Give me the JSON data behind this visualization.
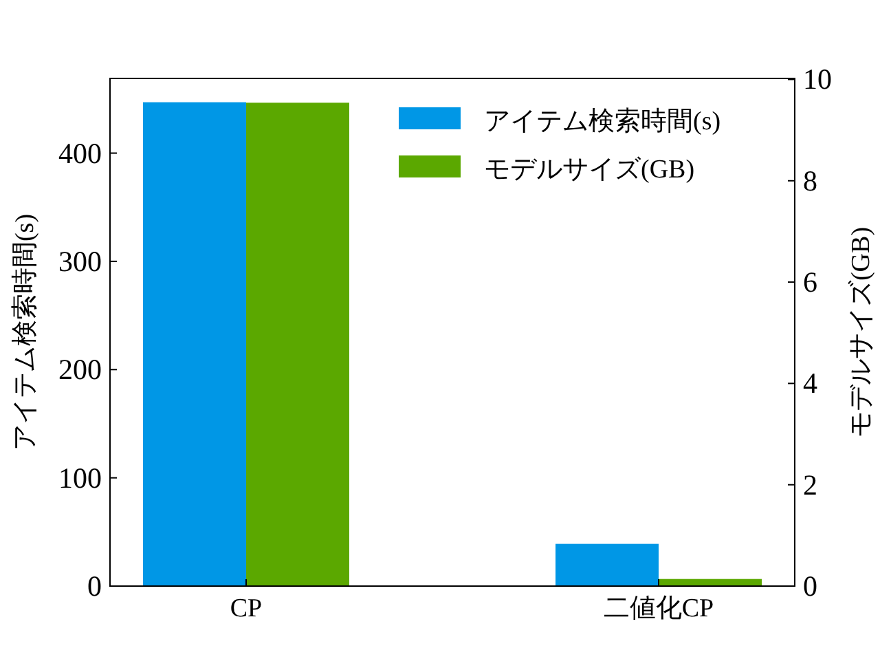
{
  "chart_data": {
    "type": "bar",
    "categories": [
      "CP",
      "二値化CP"
    ],
    "series": [
      {
        "name": "アイテム検索時間(s)",
        "color": "#0097e6",
        "values": [
          447,
          39
        ]
      },
      {
        "name": "モデルサイズ(GB)",
        "color": "#5ba800",
        "values": [
          9.54,
          0.14
        ],
        "axis": "y2"
      }
    ],
    "ylabel": "アイテム検索時間(s)",
    "y2label": "モデルサイズ(GB)",
    "ylim": [
      0,
      469
    ],
    "yticks": [
      0,
      100,
      200,
      300,
      400
    ],
    "y2lim": [
      0,
      10.02
    ],
    "y2ticks": [
      0,
      2,
      4,
      6,
      8,
      10
    ],
    "legend": "top right",
    "grid": false
  }
}
